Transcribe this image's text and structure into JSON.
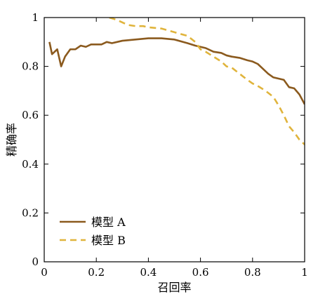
{
  "chart_data": {
    "type": "line",
    "xlabel": "召回率",
    "ylabel": "精确率",
    "xlim": [
      0,
      1
    ],
    "ylim": [
      0,
      1
    ],
    "xticks": [
      0,
      0.2,
      0.4,
      0.6,
      0.8,
      1
    ],
    "xtick_labels": [
      "0",
      "0.2",
      "0.4",
      "0.6",
      "0.8",
      "1"
    ],
    "yticks": [
      0,
      0.2,
      0.4,
      0.6,
      0.8,
      1
    ],
    "ytick_labels": [
      "0",
      "0.2",
      "0.4",
      "0.6",
      "0.8",
      "1"
    ],
    "grid": false,
    "legend_position": "bottom-left",
    "series": [
      {
        "name": "模型 A",
        "color": "#8B5A1E",
        "style": "solid",
        "x": [
          0.02,
          0.03,
          0.05,
          0.065,
          0.08,
          0.1,
          0.12,
          0.14,
          0.16,
          0.18,
          0.2,
          0.22,
          0.24,
          0.26,
          0.3,
          0.35,
          0.4,
          0.45,
          0.5,
          0.55,
          0.58,
          0.6,
          0.62,
          0.65,
          0.68,
          0.7,
          0.72,
          0.75,
          0.78,
          0.8,
          0.82,
          0.84,
          0.86,
          0.88,
          0.9,
          0.92,
          0.94,
          0.96,
          0.98,
          1.0
        ],
        "y": [
          0.9,
          0.85,
          0.87,
          0.8,
          0.84,
          0.87,
          0.87,
          0.885,
          0.88,
          0.89,
          0.89,
          0.89,
          0.9,
          0.895,
          0.905,
          0.91,
          0.915,
          0.915,
          0.91,
          0.895,
          0.885,
          0.88,
          0.875,
          0.86,
          0.855,
          0.845,
          0.84,
          0.835,
          0.825,
          0.82,
          0.81,
          0.79,
          0.77,
          0.755,
          0.75,
          0.745,
          0.715,
          0.71,
          0.685,
          0.645
        ]
      },
      {
        "name": "模型 B",
        "color": "#E0B43C",
        "style": "dashed",
        "x": [
          0.25,
          0.28,
          0.3,
          0.32,
          0.35,
          0.38,
          0.4,
          0.45,
          0.5,
          0.55,
          0.58,
          0.6,
          0.62,
          0.65,
          0.68,
          0.7,
          0.72,
          0.75,
          0.78,
          0.8,
          0.82,
          0.85,
          0.88,
          0.9,
          0.92,
          0.94,
          0.96,
          0.98,
          1.0
        ],
        "y": [
          1.0,
          0.99,
          0.98,
          0.97,
          0.965,
          0.965,
          0.96,
          0.955,
          0.94,
          0.925,
          0.9,
          0.87,
          0.86,
          0.84,
          0.82,
          0.8,
          0.795,
          0.77,
          0.745,
          0.73,
          0.72,
          0.7,
          0.675,
          0.64,
          0.6,
          0.555,
          0.53,
          0.5,
          0.48
        ]
      }
    ]
  }
}
